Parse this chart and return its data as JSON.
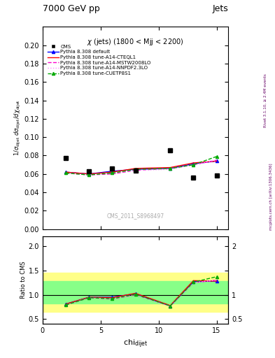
{
  "title_top": "7000 GeV pp",
  "title_right": "Jets",
  "inner_title": "χ (jets) (1800 < Mjj < 2200)",
  "watermark": "CMS_2011_S8968497",
  "right_label_top": "Rivet 3.1.10, ≥ 2.4M events",
  "right_label_bottom": "mcplots.cern.ch [arXiv:1306.3436]",
  "ylabel_main": "1/σ_dijet dσ_dijet/dchi_dijet",
  "ylabel_ratio": "Ratio to CMS",
  "xlabel": "chi_dijet",
  "ylim_main": [
    0.0,
    0.22
  ],
  "ylim_ratio": [
    0.4,
    2.2
  ],
  "yticks_main": [
    0.0,
    0.02,
    0.04,
    0.06,
    0.08,
    0.1,
    0.12,
    0.14,
    0.16,
    0.18,
    0.2
  ],
  "yticks_ratio": [
    0.5,
    1.0,
    1.5,
    2.0
  ],
  "xlim": [
    0,
    16
  ],
  "xticks": [
    0,
    5,
    10,
    15
  ],
  "cms_x": [
    2,
    4,
    6,
    8,
    11,
    13,
    15
  ],
  "cms_y": [
    0.077,
    0.063,
    0.066,
    0.064,
    0.086,
    0.056,
    0.058
  ],
  "chi_x": [
    2,
    4,
    6,
    8,
    11,
    13,
    15
  ],
  "pythia_default_y": [
    0.062,
    0.06,
    0.063,
    0.065,
    0.066,
    0.071,
    0.074
  ],
  "pythia_cteql1_y": [
    0.062,
    0.06,
    0.062,
    0.066,
    0.067,
    0.072,
    0.074
  ],
  "pythia_mstw_y": [
    0.061,
    0.059,
    0.06,
    0.064,
    0.066,
    0.07,
    0.075
  ],
  "pythia_nnpdf_y": [
    0.061,
    0.059,
    0.061,
    0.064,
    0.065,
    0.07,
    0.075
  ],
  "pythia_cuetp8s1_y": [
    0.061,
    0.059,
    0.061,
    0.065,
    0.066,
    0.07,
    0.079
  ],
  "ratio_default_y": [
    0.81,
    0.95,
    0.95,
    1.02,
    0.77,
    1.27,
    1.28
  ],
  "ratio_cteql1_y": [
    0.81,
    0.95,
    0.94,
    1.03,
    0.78,
    1.29,
    1.28
  ],
  "ratio_mstw_y": [
    0.79,
    0.94,
    0.91,
    1.0,
    0.77,
    1.25,
    1.3
  ],
  "ratio_nnpdf_y": [
    0.79,
    0.94,
    0.92,
    1.0,
    0.76,
    1.25,
    1.3
  ],
  "ratio_cuetp8s1_y": [
    0.79,
    0.94,
    0.92,
    1.01,
    0.77,
    1.26,
    1.37
  ],
  "color_default": "#0000ff",
  "color_cteql1": "#ff0000",
  "color_mstw": "#ff00cc",
  "color_nnpdf": "#ff88ff",
  "color_cuetp8s1": "#00aa00",
  "yellow_lo": 0.65,
  "yellow_hi": 1.45,
  "green_lo": 0.82,
  "green_hi": 1.28,
  "yellow_split": 7,
  "bg_color": "#ffffff",
  "plot_bg": "#ffffff"
}
